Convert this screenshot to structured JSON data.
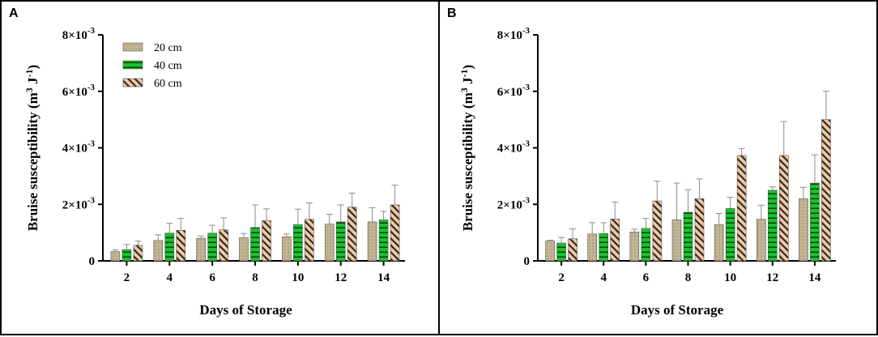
{
  "chart_data": [
    {
      "panel": "A",
      "type": "bar",
      "categories": [
        "2",
        "4",
        "6",
        "8",
        "10",
        "12",
        "14"
      ],
      "xlabel": "Days of Storage",
      "ylabel": "Bruise susceptibility (m³ J⁻¹)",
      "ylim": [
        0,
        0.008
      ],
      "yticks": [
        {
          "value": 0,
          "base": "0",
          "exp": ""
        },
        {
          "value": 0.002,
          "base": "2×10",
          "exp": "-3"
        },
        {
          "value": 0.004,
          "base": "4×10",
          "exp": "-3"
        },
        {
          "value": 0.006,
          "base": "6×10",
          "exp": "-3"
        },
        {
          "value": 0.008,
          "base": "8×10",
          "exp": "-3"
        }
      ],
      "legend": true,
      "series": [
        {
          "name": "20 cm",
          "pattern": "dots",
          "values": [
            0.00033,
            0.00072,
            0.0008,
            0.00082,
            0.00085,
            0.0013,
            0.00138
          ],
          "errors": [
            6e-05,
            0.0002,
            8e-05,
            0.00015,
            0.0001,
            0.00035,
            0.0005
          ]
        },
        {
          "name": "40 cm",
          "pattern": "hlines",
          "values": [
            0.0004,
            0.00098,
            0.00098,
            0.00118,
            0.00128,
            0.00138,
            0.00145
          ],
          "errors": [
            0.00018,
            0.00035,
            0.00028,
            0.0008,
            0.00055,
            0.0006,
            0.0003
          ]
        },
        {
          "name": "60 cm",
          "pattern": "diag",
          "values": [
            0.00055,
            0.00108,
            0.0011,
            0.00142,
            0.00147,
            0.0019,
            0.00198
          ],
          "errors": [
            0.00015,
            0.00042,
            0.00042,
            0.00042,
            0.00058,
            0.0005,
            0.0007
          ]
        }
      ]
    },
    {
      "panel": "B",
      "type": "bar",
      "categories": [
        "2",
        "4",
        "6",
        "8",
        "10",
        "12",
        "14"
      ],
      "xlabel": "Days of Storage",
      "ylabel": "Bruise susceptibility (m³ J⁻¹)",
      "ylim": [
        0,
        0.008
      ],
      "yticks": [
        {
          "value": 0,
          "base": "0",
          "exp": ""
        },
        {
          "value": 0.002,
          "base": "2×10",
          "exp": "-3"
        },
        {
          "value": 0.004,
          "base": "4×10",
          "exp": "-3"
        },
        {
          "value": 0.006,
          "base": "6×10",
          "exp": "-3"
        },
        {
          "value": 0.008,
          "base": "8×10",
          "exp": "-3"
        }
      ],
      "legend": false,
      "series": [
        {
          "name": "20 cm",
          "pattern": "dots",
          "values": [
            0.0007,
            0.00095,
            0.00102,
            0.00145,
            0.00128,
            0.00147,
            0.0022
          ],
          "errors": [
            3e-05,
            0.0004,
            0.0001,
            0.0013,
            0.0004,
            0.0005,
            0.0004
          ]
        },
        {
          "name": "40 cm",
          "pattern": "hlines",
          "values": [
            0.00063,
            0.00097,
            0.00115,
            0.00172,
            0.00185,
            0.0025,
            0.00275
          ],
          "errors": [
            0.0002,
            0.00038,
            0.00035,
            0.0008,
            0.0004,
            0.00012,
            0.001
          ]
        },
        {
          "name": "60 cm",
          "pattern": "diag",
          "values": [
            0.00078,
            0.00148,
            0.00212,
            0.0022,
            0.00373,
            0.00373,
            0.005
          ],
          "errors": [
            0.00035,
            0.0006,
            0.0007,
            0.0007,
            0.00025,
            0.0012,
            0.001
          ]
        }
      ]
    }
  ],
  "panels": {
    "a_label": "A",
    "b_label": "B"
  },
  "colors": {
    "dots_fill": "#c7b58c",
    "dots_dot": "#7a8a9a",
    "green": "#17c22b",
    "green_line": "#0a3d10",
    "diag_fill": "#f4c9a0",
    "diag_line": "#2a2a2a",
    "error_bar": "#8c8c8c"
  }
}
